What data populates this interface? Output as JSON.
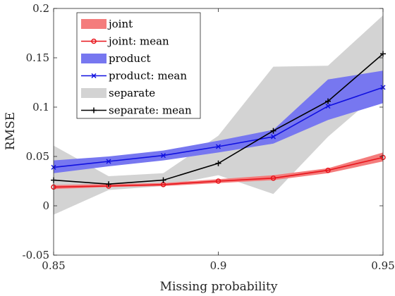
{
  "chart_data": {
    "type": "line",
    "xlabel": "Missing probability",
    "ylabel": "RMSE",
    "xlim": [
      0.85,
      0.95
    ],
    "ylim": [
      -0.05,
      0.2
    ],
    "x_ticks": [
      "0.85",
      "0.9",
      "0.95"
    ],
    "x_tick_values": [
      0.85,
      0.9,
      0.95
    ],
    "y_ticks": [
      "-0.05",
      "0",
      "0.05",
      "0.1",
      "0.15",
      "0.2"
    ],
    "y_tick_values": [
      -0.05,
      0,
      0.05,
      0.1,
      0.15,
      0.2
    ],
    "grid": false,
    "legend_position": "top-left",
    "x": [
      0.85,
      0.8667,
      0.8833,
      0.9,
      0.9167,
      0.9333,
      0.95
    ],
    "bands": [
      {
        "name": "separate",
        "color": "#d3d3d3",
        "lower": [
          -0.009,
          0.016,
          0.02,
          0.031,
          0.012,
          0.07,
          0.118
        ],
        "upper": [
          0.061,
          0.03,
          0.033,
          0.071,
          0.141,
          0.142,
          0.193
        ]
      },
      {
        "name": "product",
        "color": "#7777f0",
        "lower": [
          0.033,
          0.04,
          0.046,
          0.054,
          0.063,
          0.087,
          0.104
        ],
        "upper": [
          0.046,
          0.05,
          0.056,
          0.066,
          0.077,
          0.128,
          0.137
        ]
      },
      {
        "name": "joint",
        "color": "#f47c7c",
        "lower": [
          0.017,
          0.019,
          0.02,
          0.023,
          0.026,
          0.033,
          0.045
        ],
        "upper": [
          0.021,
          0.022,
          0.023,
          0.027,
          0.031,
          0.038,
          0.054
        ]
      }
    ],
    "series": [
      {
        "name": "joint: mean",
        "color": "#e8141b",
        "marker": "circle",
        "values": [
          0.019,
          0.02,
          0.0215,
          0.025,
          0.028,
          0.036,
          0.049
        ]
      },
      {
        "name": "product: mean",
        "color": "#1010e0",
        "marker": "x",
        "values": [
          0.039,
          0.045,
          0.051,
          0.06,
          0.07,
          0.101,
          0.12
        ]
      },
      {
        "name": "separate: mean",
        "color": "#000000",
        "marker": "plus",
        "values": [
          0.026,
          0.022,
          0.026,
          0.043,
          0.076,
          0.106,
          0.154
        ]
      }
    ],
    "legend": [
      {
        "label": "joint",
        "kind": "patch",
        "color": "#f47c7c"
      },
      {
        "label": "joint: mean",
        "kind": "line",
        "color": "#e8141b",
        "marker": "circle"
      },
      {
        "label": "product",
        "kind": "patch",
        "color": "#7777f0"
      },
      {
        "label": "product: mean",
        "kind": "line",
        "color": "#1010e0",
        "marker": "x"
      },
      {
        "label": "separate",
        "kind": "patch",
        "color": "#d3d3d3"
      },
      {
        "label": "separate: mean",
        "kind": "line",
        "color": "#000000",
        "marker": "plus"
      }
    ]
  }
}
